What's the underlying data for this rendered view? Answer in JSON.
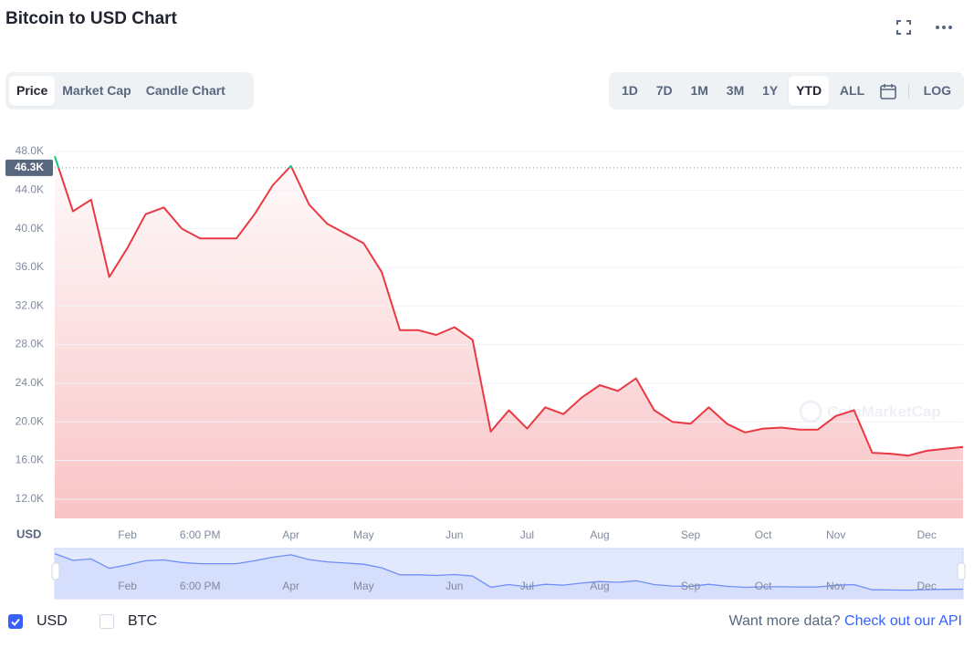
{
  "header": {
    "title": "Bitcoin to USD Chart"
  },
  "tabs": [
    "Price",
    "Market Cap",
    "Candle Chart"
  ],
  "ranges": [
    "1D",
    "7D",
    "1M",
    "3M",
    "1Y",
    "YTD",
    "ALL"
  ],
  "log_button": "LOG",
  "toggles": [
    "BTC"
  ],
  "footer": {
    "prompt": "Want more data?",
    "link": "Check out our API"
  },
  "watermark": "CoinMarketCap",
  "chart_data": {
    "type": "line",
    "y_label": "USD",
    "categories": [
      null,
      null,
      null,
      null,
      "Feb",
      null,
      null,
      null,
      "6:00 PM",
      null,
      null,
      null,
      null,
      "Apr",
      null,
      null,
      null,
      "May",
      null,
      null,
      null,
      null,
      "Jun",
      null,
      null,
      null,
      "Jul",
      null,
      null,
      null,
      "Aug",
      null,
      null,
      null,
      null,
      "Sep",
      null,
      null,
      null,
      "Oct",
      null,
      null,
      null,
      "Nov",
      null,
      null,
      null,
      null,
      "Dec",
      null,
      null
    ],
    "series": [
      {
        "name": "USD",
        "color": "#ea3943",
        "above_color": "#16c784",
        "values": [
          47500,
          41800,
          43000,
          35000,
          38000,
          41500,
          42200,
          40000,
          39000,
          39000,
          39000,
          41500,
          44500,
          46500,
          42500,
          40500,
          39500,
          38500,
          35500,
          29500,
          29500,
          29000,
          29800,
          28500,
          19000,
          21200,
          19300,
          21500,
          20800,
          22500,
          23800,
          23200,
          24500,
          21200,
          20000,
          19800,
          21500,
          19800,
          18900,
          19300,
          19400,
          19200,
          19200,
          20600,
          21200,
          16800,
          16700,
          16500,
          17000,
          17200,
          17400
        ]
      }
    ],
    "reference": {
      "value": 46300,
      "label": "46.3K"
    },
    "ylim": [
      10000,
      48750
    ],
    "yticks": [
      {
        "value": 12000,
        "label": "12.0K"
      },
      {
        "value": 16000,
        "label": "16.0K"
      },
      {
        "value": 20000,
        "label": "20.0K"
      },
      {
        "value": 24000,
        "label": "24.0K"
      },
      {
        "value": 28000,
        "label": "28.0K"
      },
      {
        "value": 32000,
        "label": "32.0K"
      },
      {
        "value": 36000,
        "label": "36.0K"
      },
      {
        "value": 40000,
        "label": "40.0K"
      },
      {
        "value": 44000,
        "label": "44.0K"
      },
      {
        "value": 48000,
        "label": "48.0K"
      }
    ],
    "grid": true
  }
}
